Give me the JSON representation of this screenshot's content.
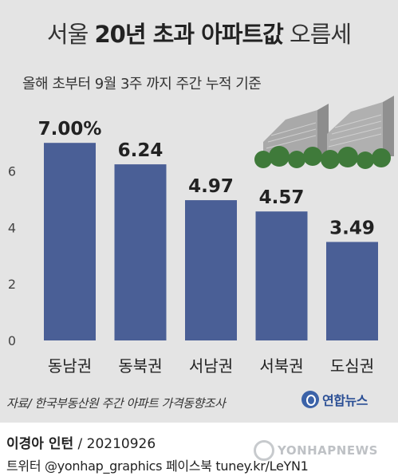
{
  "title": {
    "part1": "서울",
    "part2": "20년 초과 아파트값",
    "part3": "오름세"
  },
  "subtitle": "올해 초부터 9월 3주 까지 주간 누적 기준",
  "chart_data": {
    "type": "bar",
    "categories": [
      "동남권",
      "동북권",
      "서남권",
      "서북권",
      "도심권"
    ],
    "values": [
      7.0,
      6.24,
      4.97,
      4.57,
      3.49
    ],
    "value_labels": [
      "7.00%",
      "6.24",
      "4.97",
      "4.57",
      "3.49"
    ],
    "y_ticks": [
      "0",
      "2",
      "4",
      "6"
    ],
    "ylim": [
      0,
      7.6
    ],
    "grid": false,
    "bar_color": "#4a5f96"
  },
  "source": "자료/ 한국부동산원 주간 아파트 가격동향조사",
  "logo_text": "연합뉴스",
  "credit": {
    "author": "이경아 인턴",
    "date": " / 20210926"
  },
  "social": "트위터 @yonhap_graphics  페이스북 tuney.kr/LeYN1",
  "watermark": "YONHAPNEWS",
  "colors": {
    "panel": "#e4e4e4",
    "bar": "#4a5f96",
    "logo": "#2b4f95"
  }
}
